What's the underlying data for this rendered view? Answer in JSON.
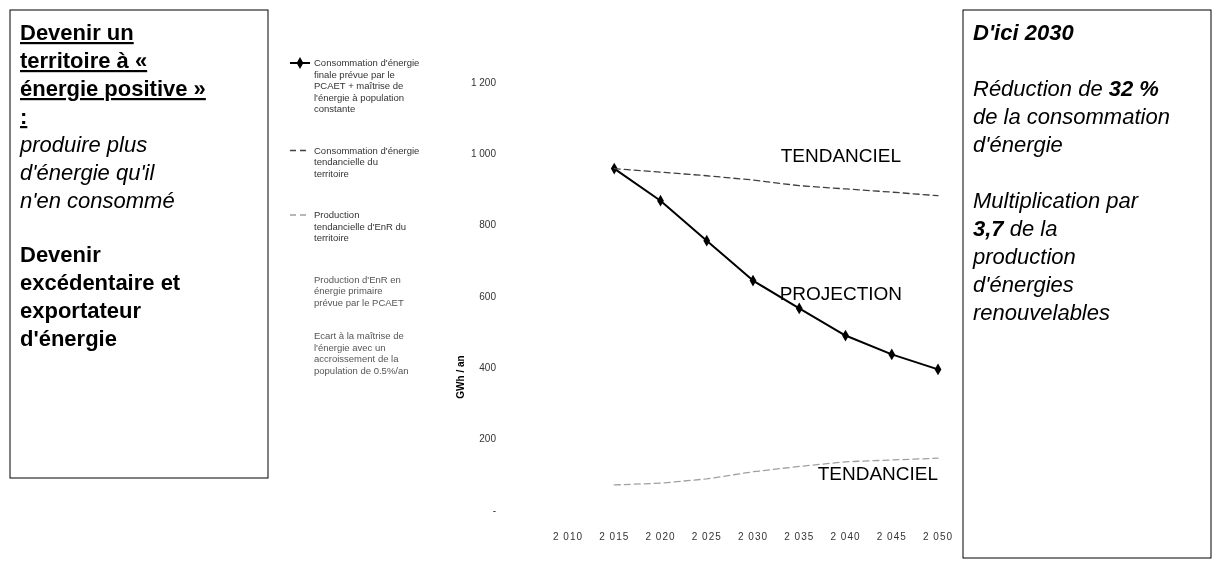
{
  "chart_data": [
    {
      "type": "other",
      "title": "Devenir un territoire à « énergie positive » :",
      "annotations": [
        "produire plus d'énergie qu'il n'en consommé",
        "Devenir excédentaire et exportateur d'énergie"
      ]
    },
    {
      "type": "line",
      "ylabel": "GWh / an",
      "x": [
        2015,
        2020,
        2025,
        2030,
        2035,
        2040,
        2045,
        2050
      ],
      "xlim": [
        2010,
        2050
      ],
      "xticks": [
        {
          "value": 2010,
          "label": "2 010"
        },
        {
          "value": 2015,
          "label": "2 015"
        },
        {
          "value": 2020,
          "label": "2 020"
        },
        {
          "value": 2025,
          "label": "2 025"
        },
        {
          "value": 2030,
          "label": "2 030"
        },
        {
          "value": 2035,
          "label": "2 035"
        },
        {
          "value": 2040,
          "label": "2 040"
        },
        {
          "value": 2045,
          "label": "2 045"
        },
        {
          "value": 2050,
          "label": "2 050"
        }
      ],
      "ylim": [
        0,
        1200
      ],
      "yticks": [
        {
          "value": 0,
          "label": "-"
        },
        200,
        400,
        600,
        800,
        {
          "value": 1000,
          "label": "1 000"
        },
        {
          "value": 1200,
          "label": "1 200"
        }
      ],
      "legend": "left",
      "grid": false,
      "series": [
        {
          "name": "Consommation d'énergie finale prévue par le PCAET + maîtrise de l'énergie à population constante",
          "color": "#000000",
          "marker": "diamond",
          "line_style": "solid",
          "values": [
            960,
            870,
            758,
            646,
            568,
            492,
            439,
            397
          ]
        },
        {
          "name": "Consommation d'énergie tendancielle du territoire",
          "color": "#404040",
          "marker": "none",
          "line_style": "dashed",
          "values": [
            960,
            950,
            940,
            928,
            912,
            903,
            894,
            884
          ]
        },
        {
          "name": "Production tendancielle d'EnR du territoire",
          "color": "#a0a0a0",
          "marker": "none",
          "line_style": "dashed",
          "values": [
            73,
            78,
            90,
            110,
            125,
            138,
            143,
            148
          ]
        }
      ],
      "annotations": [
        "Production d'EnR en énergie primaire prévue par le PCAET",
        "Ecart à la maîtrise de l'énergie avec un accroissement de la population de 0.5%/an",
        "TENDANCIEL",
        "PROJECTION",
        "TENDANCIEL"
      ]
    },
    {
      "type": "other",
      "title": "D'ici 2030",
      "annotations": [
        "Réduction de 32 % de la consommation d'énergie",
        "Multiplication par 3,7 de la production d'énergies renouvelables"
      ]
    }
  ]
}
